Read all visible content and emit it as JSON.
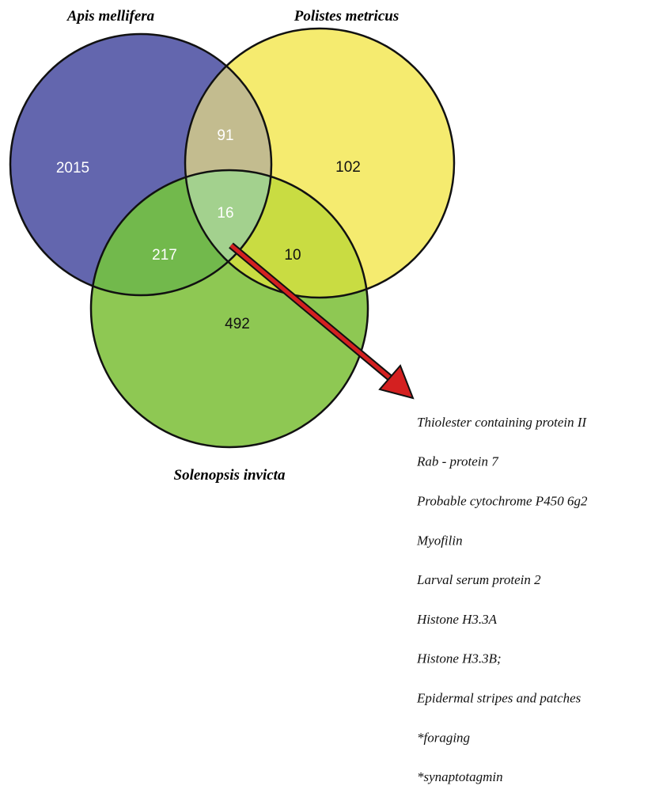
{
  "sets": [
    "Apis mellifera",
    "Polistes metricus",
    "Solenopsis invicta"
  ],
  "regions": {
    "apis_only": 2015,
    "polistes_only": 102,
    "solenopsis_only": 492,
    "apis_polistes": 91,
    "apis_solenopsis": 217,
    "polistes_solenopsis": 10,
    "all_three": 16
  },
  "genes": [
    "Thiolester containing protein II",
    "Rab - protein 7",
    "Probable cytochrome P450 6g2",
    "Myofilin",
    "Larval serum protein 2",
    "Histone H3.3A",
    "Histone H3.3B;",
    "Epidermal stripes and patches",
    "*foraging",
    "*synaptotagmin"
  ]
}
